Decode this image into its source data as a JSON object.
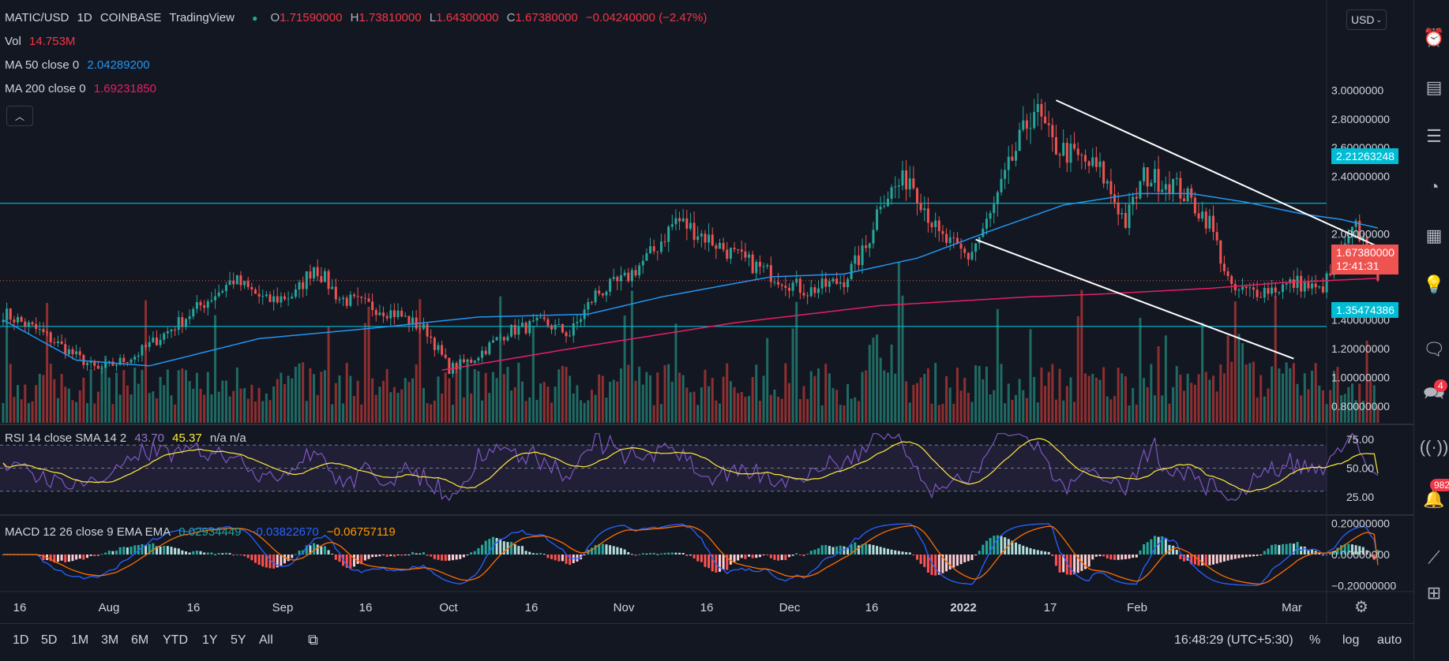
{
  "header": {
    "symbol": "MATIC/USD",
    "interval": "1D",
    "exchange": "COINBASE",
    "source": "TradingView",
    "open_label": "O",
    "open": "1.71590000",
    "high_label": "H",
    "high": "1.73810000",
    "low_label": "L",
    "low": "1.64300000",
    "close_label": "C",
    "close": "1.67380000",
    "change": "−0.04240000 (−2.47%)"
  },
  "indicators": {
    "vol_label": "Vol",
    "vol_value": "14.753M",
    "ma50_label": "MA 50 close 0",
    "ma50_value": "2.04289200",
    "ma200_label": "MA 200 close 0",
    "ma200_value": "1.69231850",
    "rsi_label": "RSI 14 close SMA 14 2",
    "rsi_value": "43.70",
    "rsi_sma": "45.37",
    "rsi_na": "n/a n/a",
    "macd_label": "MACD 12 26 close 9 EMA EMA",
    "macd_hist": "0.02934449",
    "macd_line": "−0.03822670",
    "macd_signal": "−0.06757119"
  },
  "currency_button": "USD",
  "price_tags": {
    "resistance": "2.21263248",
    "current": "1.67380000",
    "countdown": "12:41:31",
    "support": "1.35474386"
  },
  "bottom_bar": {
    "ranges": [
      "1D",
      "5D",
      "1M",
      "3M",
      "6M",
      "YTD",
      "1Y",
      "5Y",
      "All"
    ],
    "clock": "16:48:29 (UTC+5:30)",
    "percent": "%",
    "log": "log",
    "auto": "auto"
  },
  "toolbar": {
    "icons": [
      "alarm-clock-icon",
      "watchlist-icon",
      "news-icon",
      "calendar-icon",
      "lightbulb-icon",
      "chat-icon",
      "ideas-icon",
      "streams-icon",
      "notifications-icon",
      "chart-icon",
      "grid-icon"
    ],
    "ideas_badge": "4",
    "notifications_badge": "982"
  },
  "colors": {
    "up": "#26a69a",
    "down": "#ef5350",
    "ma50": "#2196f3",
    "ma200": "#e91e63",
    "level": "#00bcd4",
    "bg": "#131722"
  },
  "chart_data": [
    {
      "type": "candlestick",
      "title": "MATIC/USD 1D COINBASE",
      "x_ticks": [
        "16",
        "Aug",
        "16",
        "Sep",
        "16",
        "Oct",
        "16",
        "Nov",
        "16",
        "Dec",
        "16",
        "2022",
        "17",
        "Feb",
        "Mar"
      ],
      "y_ticks": [
        "3.0000000",
        "2.80000000",
        "2.60000000",
        "2.40000000",
        "2.00000000",
        "1.80000000",
        "1.40000000",
        "1.20000000",
        "1.00000000",
        "0.80000000"
      ],
      "ylim": [
        0.72,
        3.05
      ],
      "close_series_anchors": [
        [
          0,
          1.45
        ],
        [
          10,
          1.32
        ],
        [
          18,
          1.18
        ],
        [
          26,
          1.05
        ],
        [
          36,
          1.15
        ],
        [
          45,
          1.32
        ],
        [
          55,
          1.52
        ],
        [
          63,
          1.68
        ],
        [
          72,
          1.53
        ],
        [
          80,
          1.58
        ],
        [
          85,
          1.78
        ],
        [
          92,
          1.55
        ],
        [
          100,
          1.5
        ],
        [
          108,
          1.44
        ],
        [
          116,
          1.32
        ],
        [
          122,
          1.06
        ],
        [
          128,
          1.12
        ],
        [
          138,
          1.32
        ],
        [
          148,
          1.38
        ],
        [
          155,
          1.3
        ],
        [
          162,
          1.58
        ],
        [
          170,
          1.68
        ],
        [
          178,
          1.88
        ],
        [
          184,
          2.1
        ],
        [
          192,
          1.98
        ],
        [
          200,
          1.85
        ],
        [
          210,
          1.72
        ],
        [
          220,
          1.6
        ],
        [
          230,
          1.68
        ],
        [
          236,
          1.9
        ],
        [
          240,
          2.24
        ],
        [
          248,
          2.4
        ],
        [
          256,
          1.98
        ],
        [
          264,
          1.84
        ],
        [
          270,
          2.12
        ],
        [
          276,
          2.52
        ],
        [
          282,
          2.88
        ],
        [
          287,
          2.62
        ],
        [
          293,
          2.54
        ],
        [
          300,
          2.44
        ],
        [
          307,
          2.08
        ],
        [
          312,
          2.4
        ],
        [
          320,
          2.35
        ],
        [
          325,
          2.22
        ],
        [
          330,
          2.08
        ],
        [
          336,
          1.6
        ],
        [
          342,
          1.6
        ],
        [
          348,
          1.62
        ],
        [
          354,
          1.66
        ],
        [
          360,
          1.6
        ],
        [
          364,
          1.75
        ],
        [
          370,
          2.04
        ],
        [
          373,
          1.9
        ],
        [
          376,
          1.67
        ]
      ],
      "ma50_anchors": [
        [
          0,
          1.4
        ],
        [
          20,
          1.12
        ],
        [
          40,
          1.08
        ],
        [
          70,
          1.27
        ],
        [
          100,
          1.34
        ],
        [
          130,
          1.42
        ],
        [
          160,
          1.44
        ],
        [
          180,
          1.56
        ],
        [
          210,
          1.7
        ],
        [
          230,
          1.72
        ],
        [
          250,
          1.83
        ],
        [
          270,
          2.02
        ],
        [
          290,
          2.2
        ],
        [
          310,
          2.28
        ],
        [
          325,
          2.28
        ],
        [
          340,
          2.22
        ],
        [
          355,
          2.14
        ],
        [
          366,
          2.1
        ],
        [
          376,
          2.04
        ]
      ],
      "ma200_anchors": [
        [
          120,
          1.05
        ],
        [
          160,
          1.22
        ],
        [
          200,
          1.38
        ],
        [
          240,
          1.5
        ],
        [
          280,
          1.56
        ],
        [
          300,
          1.58
        ],
        [
          330,
          1.62
        ],
        [
          350,
          1.66
        ],
        [
          376,
          1.69
        ]
      ],
      "horizontal_levels": [
        2.21263248,
        1.35474386
      ],
      "trendlines": [
        [
          [
            288,
            2.93
          ],
          [
            377,
            1.9
          ]
        ],
        [
          [
            266,
            1.96
          ],
          [
            353,
            1.13
          ]
        ]
      ]
    },
    {
      "type": "line",
      "title": "RSI 14 close SMA 14 2",
      "y_ticks": [
        "75.00",
        "50.00",
        "25.00"
      ],
      "ylim": [
        20,
        80
      ],
      "rsi_latest": 43.7,
      "sma_latest": 45.37
    },
    {
      "type": "bar",
      "title": "MACD 12 26 close 9 EMA EMA",
      "y_ticks": [
        "0.20000000",
        "0.00000000",
        "−0.20000000"
      ],
      "ylim": [
        -0.22,
        0.22
      ],
      "histogram_latest": 0.02934449,
      "macd_latest": -0.0382267,
      "signal_latest": -0.06757119
    }
  ]
}
